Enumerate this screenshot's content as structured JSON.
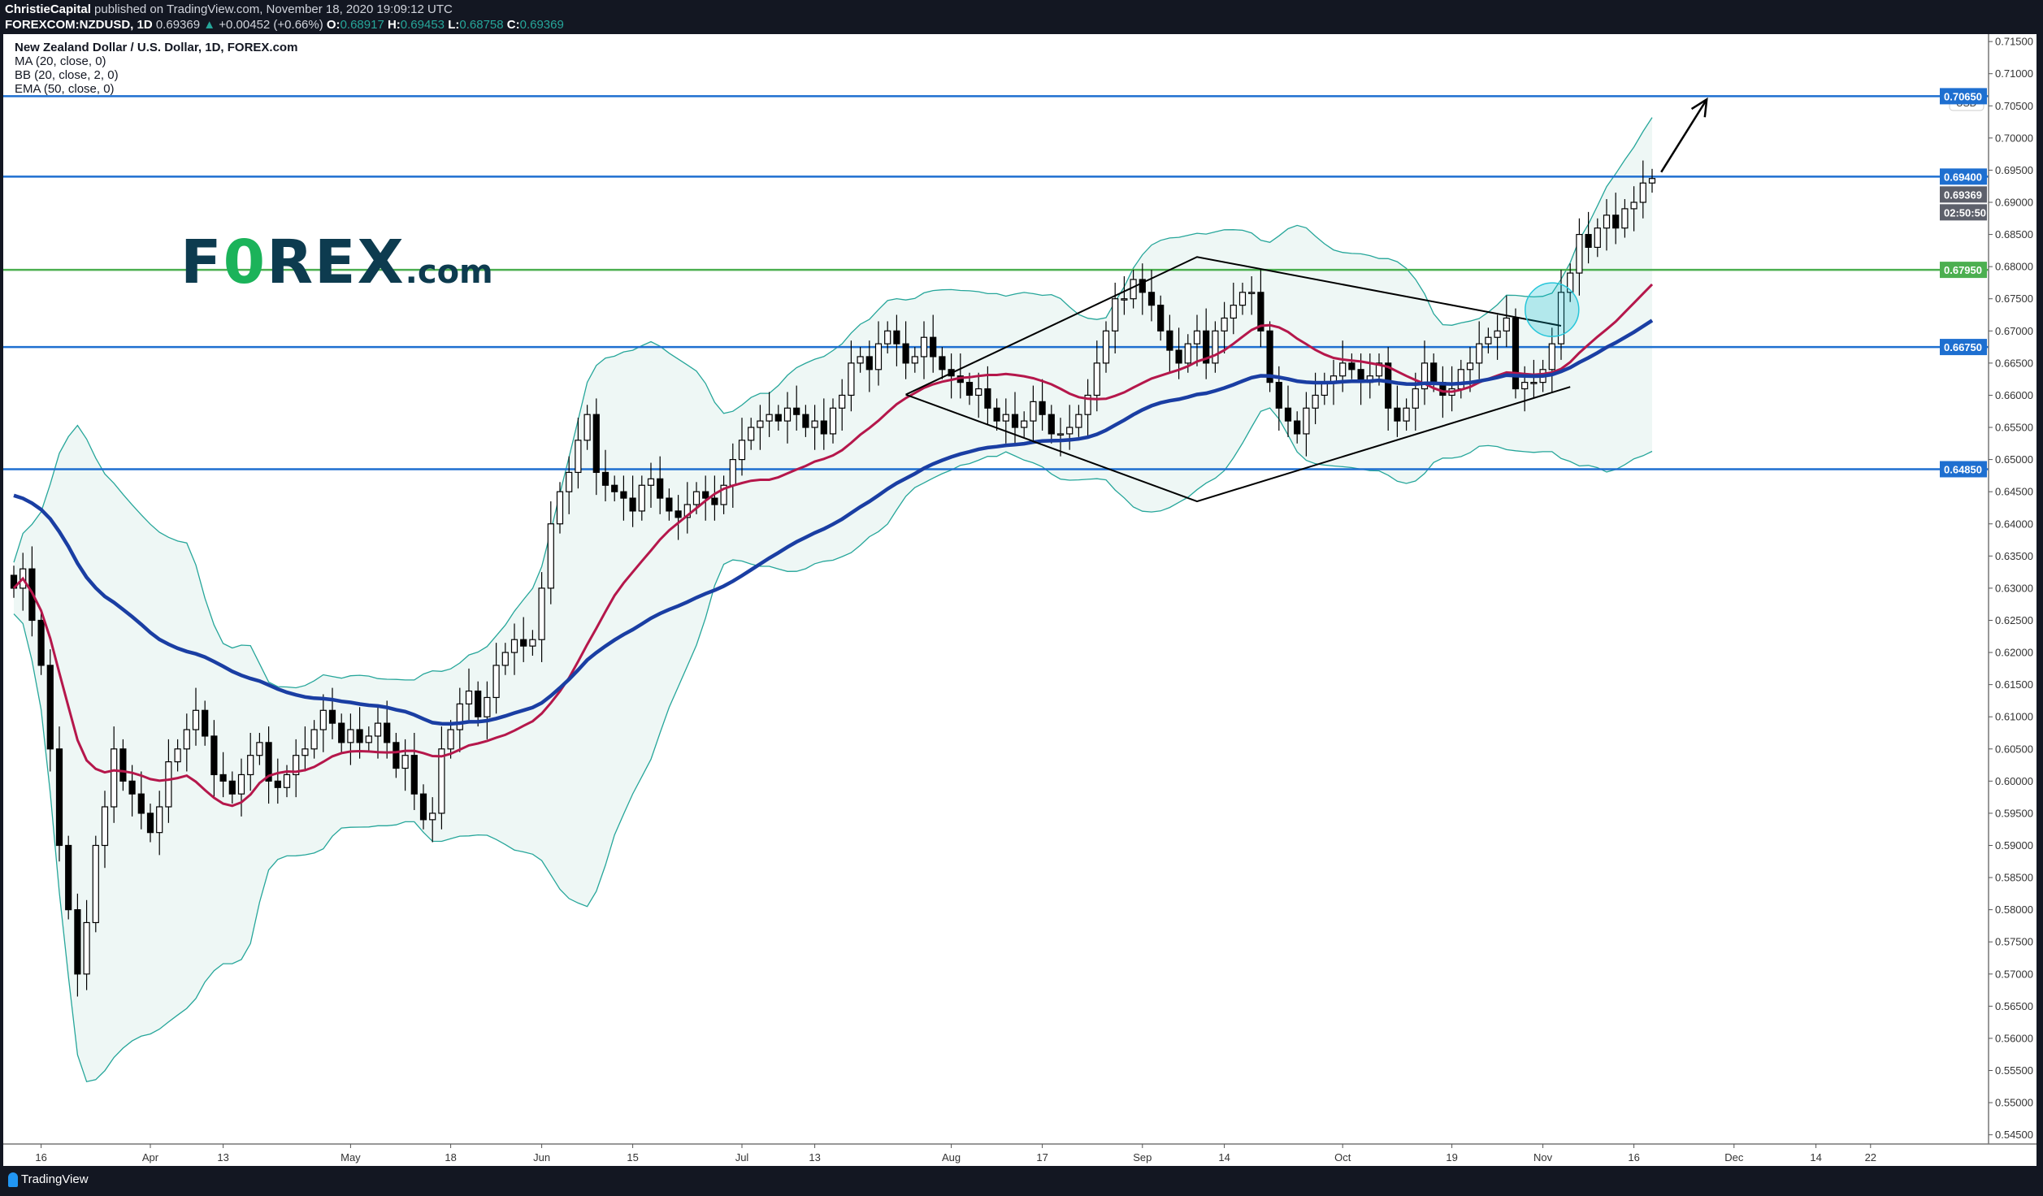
{
  "header": {
    "publisher": "ChristieCapital",
    "published_text": "published on TradingView.com, November 18, 2020 19:09:12 UTC",
    "symbol": "FOREXCOM:NZDUSD, 1D",
    "last": "0.69369",
    "change": "+0.00452 (+0.66%)",
    "o_label": "O:",
    "o": "0.68917",
    "h_label": "H:",
    "h": "0.69453",
    "l_label": "L:",
    "l": "0.68758",
    "c_label": "C:",
    "c": "0.69369"
  },
  "legend": {
    "title": "New Zealand Dollar / U.S. Dollar, 1D, FOREX.com",
    "items": [
      "MA (20, close, 0)",
      "BB (20, close, 2, 0)",
      "EMA (50, close, 0)"
    ]
  },
  "logo": {
    "text": "FOREX.com"
  },
  "footer": {
    "brand": "TradingView"
  },
  "chart_data": {
    "type": "candlestick",
    "start_date": "2020-03-11",
    "closes": [
      0.63,
      0.633,
      0.625,
      0.618,
      0.605,
      0.59,
      0.58,
      0.57,
      0.578,
      0.59,
      0.596,
      0.605,
      0.6,
      0.598,
      0.595,
      0.592,
      0.596,
      0.603,
      0.605,
      0.608,
      0.611,
      0.607,
      0.601,
      0.6,
      0.598,
      0.601,
      0.604,
      0.606,
      0.6,
      0.599,
      0.601,
      0.604,
      0.605,
      0.608,
      0.611,
      0.609,
      0.606,
      0.608,
      0.606,
      0.607,
      0.609,
      0.606,
      0.602,
      0.604,
      0.598,
      0.594,
      0.595,
      0.605,
      0.608,
      0.612,
      0.614,
      0.61,
      0.613,
      0.618,
      0.62,
      0.622,
      0.621,
      0.622,
      0.63,
      0.64,
      0.645,
      0.648,
      0.653,
      0.657,
      0.648,
      0.646,
      0.645,
      0.644,
      0.642,
      0.646,
      0.647,
      0.644,
      0.642,
      0.641,
      0.643,
      0.645,
      0.644,
      0.643,
      0.646,
      0.65,
      0.653,
      0.655,
      0.656,
      0.657,
      0.656,
      0.658,
      0.657,
      0.655,
      0.656,
      0.654,
      0.658,
      0.66,
      0.665,
      0.666,
      0.664,
      0.668,
      0.67,
      0.668,
      0.665,
      0.666,
      0.669,
      0.666,
      0.664,
      0.663,
      0.662,
      0.66,
      0.661,
      0.658,
      0.656,
      0.657,
      0.655,
      0.656,
      0.659,
      0.657,
      0.654,
      0.654,
      0.655,
      0.657,
      0.66,
      0.665,
      0.67,
      0.675,
      0.675,
      0.678,
      0.676,
      0.674,
      0.67,
      0.667,
      0.665,
      0.668,
      0.67,
      0.665,
      0.67,
      0.672,
      0.674,
      0.676,
      0.676,
      0.67,
      0.662,
      0.658,
      0.656,
      0.654,
      0.658,
      0.66,
      0.662,
      0.663,
      0.665,
      0.664,
      0.662,
      0.663,
      0.665,
      0.658,
      0.656,
      0.658,
      0.661,
      0.665,
      0.662,
      0.66,
      0.661,
      0.664,
      0.665,
      0.668,
      0.669,
      0.67,
      0.672,
      0.661,
      0.662,
      0.662,
      0.664,
      0.668,
      0.676,
      0.679,
      0.685,
      0.683,
      0.686,
      0.688,
      0.686,
      0.689,
      0.69,
      0.693,
      0.6937
    ],
    "indicators": [
      {
        "name": "MA (20, close, 0)",
        "color": "#b5174b"
      },
      {
        "name": "BB (20, close, 2, 0)",
        "color": "#26a69a",
        "fill": "#eef7f5"
      },
      {
        "name": "EMA (50, close, 0)",
        "color": "#1a3ea3"
      }
    ],
    "ylim": [
      0.5425,
      0.7175
    ],
    "y_unit": "USD",
    "y_ticks": [
      "0.54500",
      "0.55000",
      "0.55500",
      "0.56000",
      "0.56500",
      "0.57000",
      "0.57500",
      "0.58000",
      "0.58500",
      "0.59000",
      "0.59500",
      "0.60000",
      "0.60500",
      "0.61000",
      "0.61500",
      "0.62000",
      "0.62500",
      "0.63000",
      "0.63500",
      "0.64000",
      "0.64500",
      "0.65000",
      "0.65500",
      "0.66000",
      "0.66500",
      "0.67000",
      "0.67500",
      "0.68000",
      "0.68500",
      "0.69000",
      "0.69500",
      "0.70000",
      "0.70500",
      "0.71000",
      "0.71500"
    ],
    "x_ticks": [
      {
        "label": "16",
        "date": "2020-03-16"
      },
      {
        "label": "Apr",
        "date": "2020-04-01"
      },
      {
        "label": "13",
        "date": "2020-04-13"
      },
      {
        "label": "May",
        "date": "2020-05-01"
      },
      {
        "label": "18",
        "date": "2020-05-18"
      },
      {
        "label": "Jun",
        "date": "2020-06-01"
      },
      {
        "label": "15",
        "date": "2020-06-15"
      },
      {
        "label": "Jul",
        "date": "2020-07-01"
      },
      {
        "label": "13",
        "date": "2020-07-13"
      },
      {
        "label": "Aug",
        "date": "2020-08-03"
      },
      {
        "label": "17",
        "date": "2020-08-17"
      },
      {
        "label": "Sep",
        "date": "2020-09-01"
      },
      {
        "label": "14",
        "date": "2020-09-14"
      },
      {
        "label": "Oct",
        "date": "2020-10-01"
      },
      {
        "label": "19",
        "date": "2020-10-19"
      },
      {
        "label": "Nov",
        "date": "2020-11-02"
      },
      {
        "label": "16",
        "date": "2020-11-16"
      },
      {
        "label": "Dec",
        "date": "2020-12-01"
      },
      {
        "label": "14",
        "date": "2020-12-14"
      },
      {
        "label": "22",
        "date": "2020-12-22"
      }
    ],
    "levels": [
      {
        "price": 0.7065,
        "label": "0.70650",
        "color": "#1e6fd0"
      },
      {
        "price": 0.694,
        "label": "0.69400",
        "color": "#1e6fd0"
      },
      {
        "price": 0.6795,
        "label": "0.67950",
        "color": "#4caf50"
      },
      {
        "price": 0.6675,
        "label": "0.66750",
        "color": "#1e6fd0"
      },
      {
        "price": 0.6485,
        "label": "0.64850",
        "color": "#1e6fd0"
      }
    ],
    "last_price_label": "0.69369",
    "countdown": "02:50:50",
    "drawings": {
      "diamond": [
        [
          "2020-07-27",
          0.6601
        ],
        [
          "2020-09-09",
          0.6815
        ],
        [
          "2020-11-04",
          0.6708
        ],
        [
          "2020-11-05",
          0.6613
        ],
        [
          "2020-09-09",
          0.6435
        ]
      ],
      "arrow": [
        [
          "2020-11-19",
          0.6947
        ],
        [
          "2020-11-26",
          0.706
        ]
      ],
      "circle": {
        "date": "2020-11-03",
        "price": 0.6733
      }
    }
  }
}
